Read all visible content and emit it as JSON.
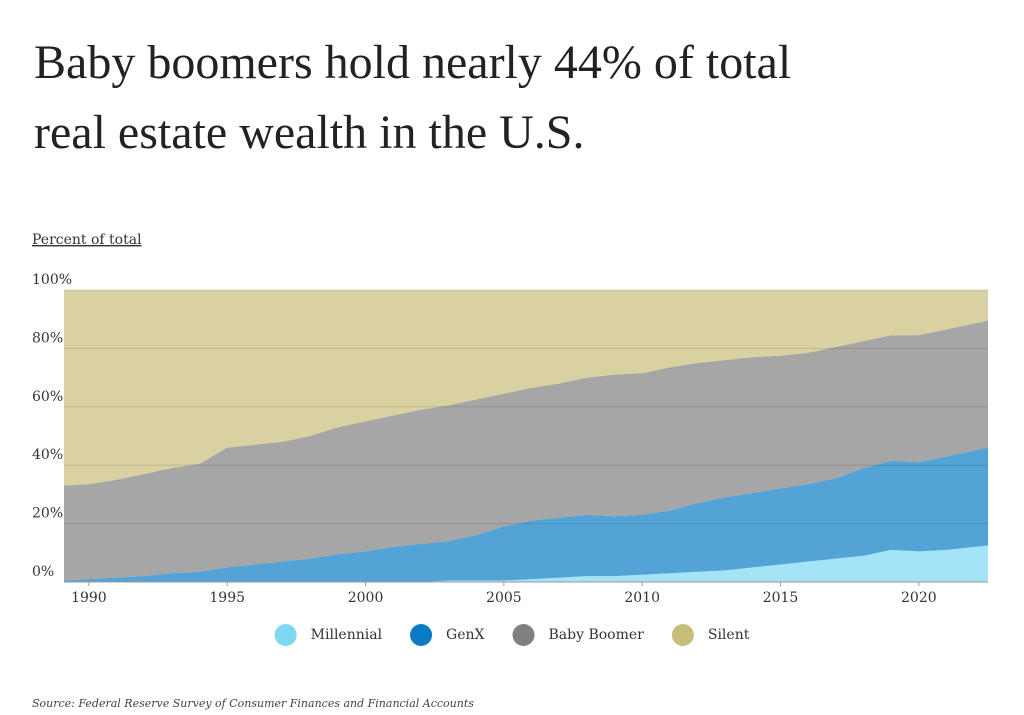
{
  "chart_data": {
    "type": "stacked-area",
    "title_lines": [
      "Baby boomers hold nearly 44% of total",
      "real estate wealth in the U.S."
    ],
    "y_label": "Percent of total",
    "source": "Source: Federal Reserve Survey of Consumer Finances and Financial Accounts",
    "x": [
      1989.1,
      1990,
      1991,
      1992,
      1993,
      1994,
      1995,
      1996,
      1997,
      1998,
      1999,
      2000,
      2001,
      2002,
      2003,
      2004,
      2005,
      2006,
      2007,
      2008,
      2009,
      2010,
      2011,
      2012,
      2013,
      2014,
      2015,
      2016,
      2017,
      2018,
      2019,
      2020,
      2021,
      2022.5
    ],
    "xlim": [
      1989.1,
      2022.5
    ],
    "xticks": [
      1990,
      1995,
      2000,
      2005,
      2010,
      2015,
      2020
    ],
    "ylim": [
      0,
      100
    ],
    "yticks": [
      {
        "value": 0,
        "label": "0%"
      },
      {
        "value": 20,
        "label": "20%"
      },
      {
        "value": 40,
        "label": "40%"
      },
      {
        "value": 60,
        "label": "60%"
      },
      {
        "value": 80,
        "label": "80%"
      },
      {
        "value": 100,
        "label": "100%"
      }
    ],
    "grid": true,
    "legend": "bottom",
    "series": [
      {
        "name": "Millennial",
        "color": "#7fd8f2",
        "values": [
          0,
          0,
          0,
          0,
          0,
          0,
          0,
          0,
          0,
          0,
          0,
          0,
          0,
          0,
          0.5,
          0.5,
          0.5,
          1,
          1.5,
          2,
          2,
          2.5,
          3,
          3.5,
          4,
          5,
          6,
          7,
          8,
          9,
          11,
          10.5,
          11,
          12.5
        ]
      },
      {
        "name": "GenX",
        "color": "#0a7cc6",
        "values": [
          0.5,
          1,
          1.5,
          2,
          3,
          3.5,
          5,
          6,
          7,
          8,
          9.5,
          10.5,
          12,
          13,
          13.5,
          15.5,
          18.5,
          20,
          20.5,
          21,
          20.5,
          20.5,
          21.5,
          23.5,
          25,
          25.5,
          26,
          26.5,
          27.5,
          30,
          30.5,
          30.5,
          32,
          33.5
        ]
      },
      {
        "name": "Baby Boomer",
        "color": "#808080",
        "values": [
          32.5,
          32.5,
          33.5,
          35,
          36,
          37,
          41,
          41,
          41,
          42,
          43.5,
          44.5,
          45,
          46,
          46.5,
          46.5,
          45.5,
          45.5,
          46,
          47,
          48.5,
          48.5,
          49,
          48,
          47,
          46.5,
          45.5,
          45,
          45,
          43.5,
          43,
          43.5,
          43.5,
          43.5
        ]
      },
      {
        "name": "Silent",
        "color": "#c9bd7a",
        "values": [
          67,
          66.5,
          65,
          63,
          61,
          59.5,
          54,
          53,
          52,
          50,
          47,
          45,
          43,
          41,
          39.5,
          37.5,
          35.5,
          33.5,
          32,
          30,
          29,
          28.5,
          26.5,
          25,
          24,
          23,
          22.5,
          21.5,
          19.5,
          17.5,
          15.5,
          15.5,
          13.5,
          10.5
        ]
      }
    ]
  }
}
